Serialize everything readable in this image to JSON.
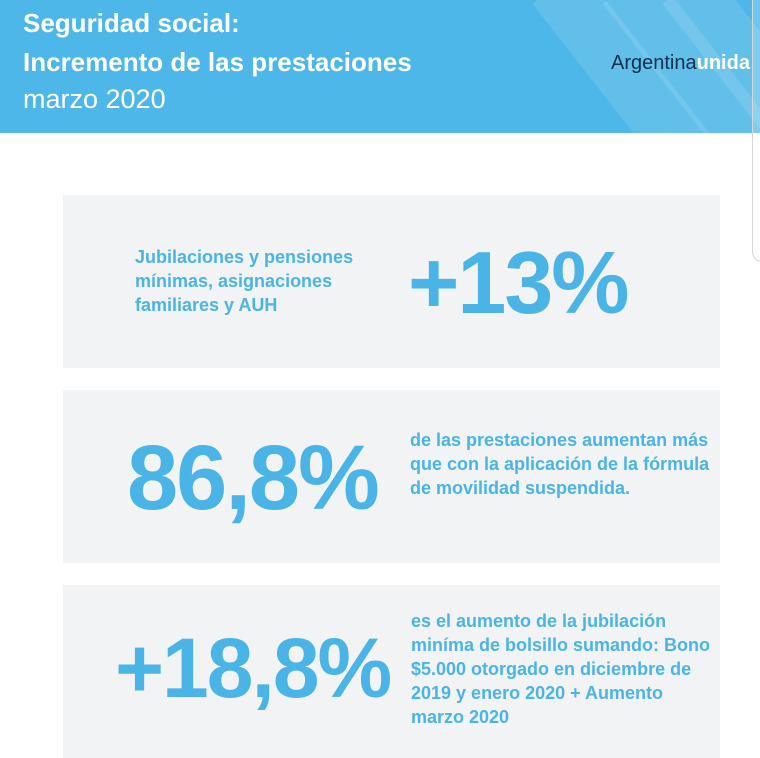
{
  "header": {
    "title_line1": "Seguridad social:",
    "title_line2": "Incremento de las prestaciones",
    "subtitle": "marzo 2020",
    "logo_part1": "Argentina",
    "logo_part2": "unida",
    "bg_color": "#4cb7e8"
  },
  "cards": [
    {
      "value": "+13%",
      "description": "Jubilaciones y pensiones mínimas, asignaciones familiares y AUH"
    },
    {
      "value": "86,8%",
      "description": "de las prestaciones aumentan más que con la aplicación de la fórmula de movilidad suspendida."
    },
    {
      "value": "+18,8%",
      "description": "es el aumento de la jubilación miníma de bolsillo sumando: Bono $5.000 otorgado en diciembre de 2019 y enero 2020 + Aumento marzo 2020"
    }
  ],
  "accent_color": "#4ab4e6"
}
